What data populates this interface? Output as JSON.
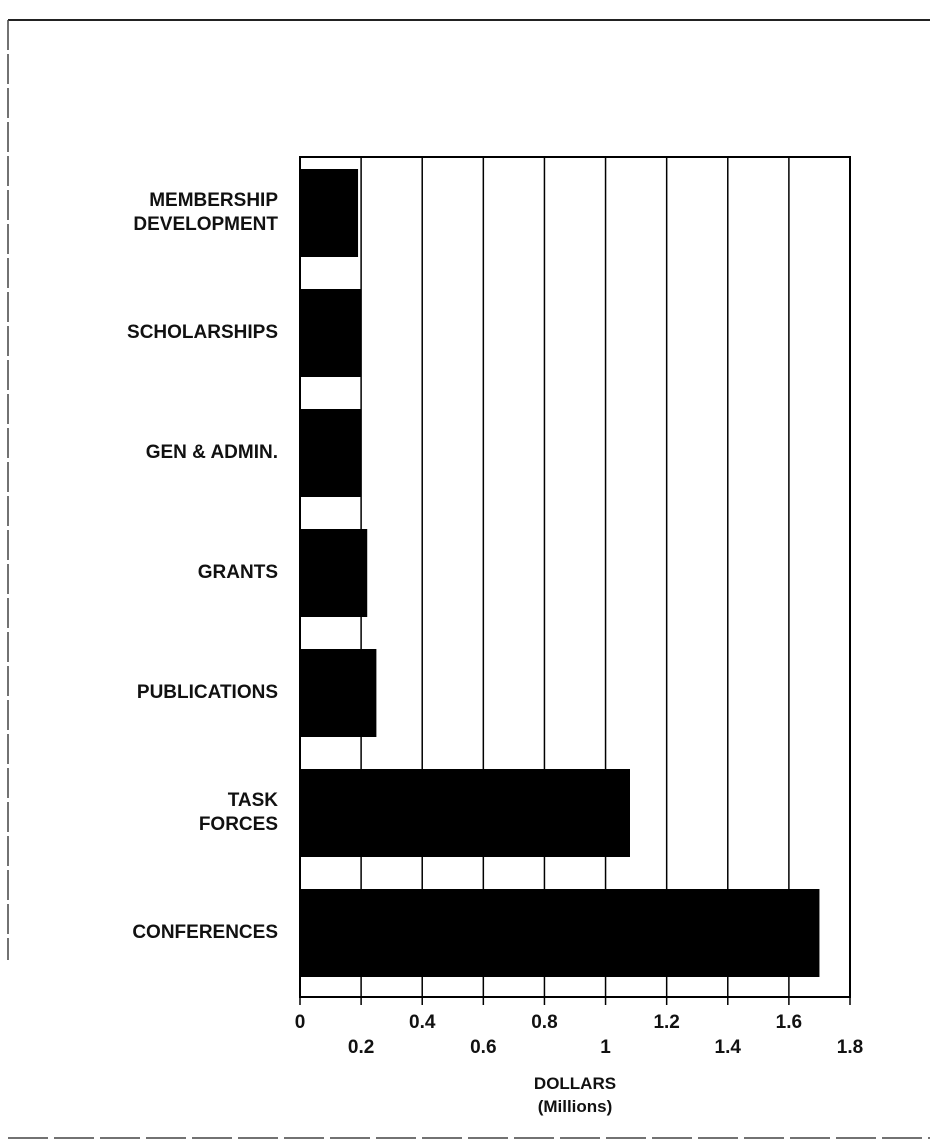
{
  "chart_data": {
    "type": "bar",
    "orientation": "horizontal",
    "categories": [
      "MEMBERSHIP\nDEVELOPMENT",
      "SCHOLARSHIPS",
      "GEN & ADMIN.",
      "GRANTS",
      "PUBLICATIONS",
      "TASK\nFORCES",
      "CONFERENCES"
    ],
    "values": [
      0.19,
      0.2,
      0.2,
      0.22,
      0.25,
      1.08,
      1.7
    ],
    "color": "#000000",
    "xlabel": "DOLLARS\n(Millions)",
    "xlim": [
      0,
      1.8
    ],
    "xticks": [
      0,
      0.2,
      0.4,
      0.6,
      0.8,
      1,
      1.2,
      1.4,
      1.6,
      1.8
    ],
    "grid": true
  }
}
